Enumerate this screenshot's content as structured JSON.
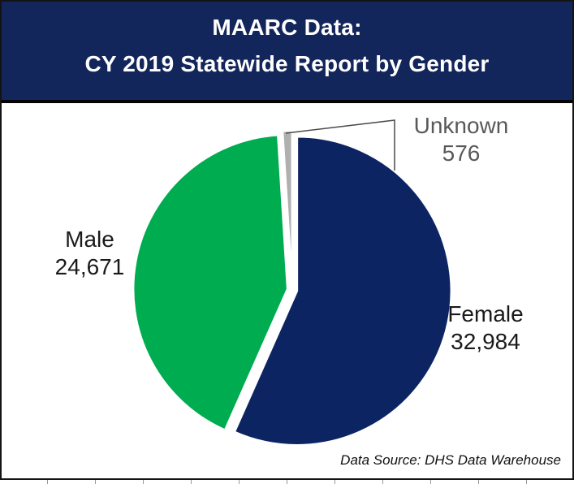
{
  "title": {
    "line1": "MAARC Data:",
    "line2": "CY 2019 Statewide Report by Gender"
  },
  "footer": {
    "text": "Data Source: DHS Data Warehouse"
  },
  "chart_data": {
    "type": "pie",
    "title": "MAARC Data: CY 2019 Statewide Report by Gender",
    "start_angle_deg": 0,
    "direction": "clockwise",
    "total": 58231,
    "legend": "none",
    "labels": "outside-with-values",
    "slices": [
      {
        "label": "Female",
        "value": 32984,
        "display": "32,984",
        "pct": 56.6,
        "color": "#0D2463",
        "label_color": "#1a1a1a"
      },
      {
        "label": "Male",
        "value": 24671,
        "display": "24,671",
        "pct": 42.4,
        "color": "#00AC50",
        "label_color": "#1a1a1a"
      },
      {
        "label": "Unknown",
        "value": 576,
        "display": "576",
        "pct": 1.0,
        "color": "#AFAFAF",
        "label_color": "#595959"
      }
    ],
    "colors": {
      "title_bar_bg": "#13265B",
      "title_text": "#ffffff",
      "slice_gap": "#ffffff",
      "leader_line": "#4a4a4a"
    }
  }
}
